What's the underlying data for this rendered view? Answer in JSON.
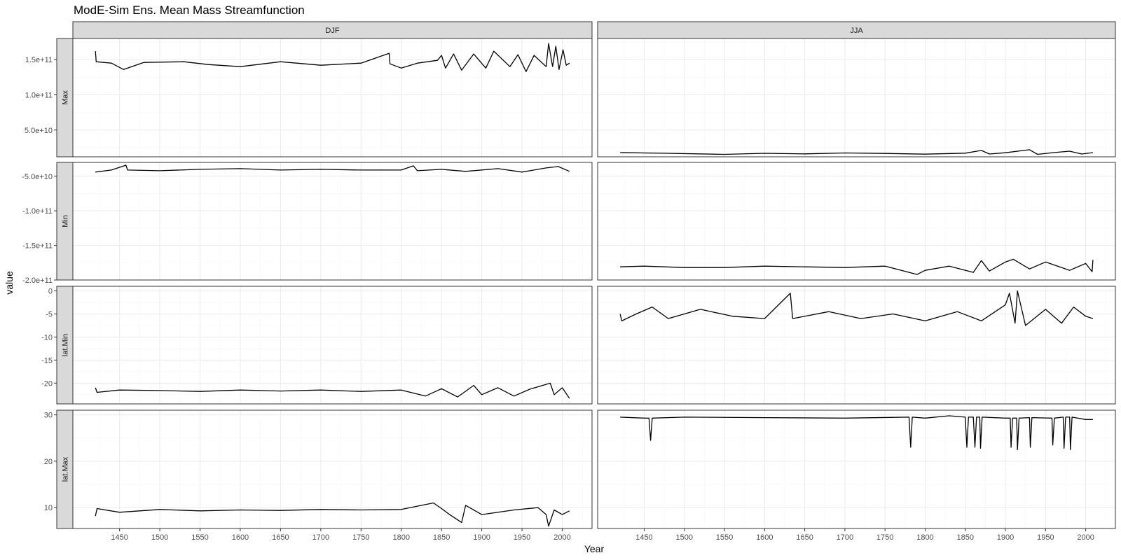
{
  "chart_data": {
    "type": "line",
    "title": "ModE-Sim Ens. Mean Mass Streamfunction",
    "xlabel": "Year",
    "ylabel": "value",
    "x_range": [
      1420,
      2009
    ],
    "xlim": [
      1392,
      2037
    ],
    "x_ticks": [
      1450,
      1500,
      1550,
      1600,
      1650,
      1700,
      1750,
      1800,
      1850,
      1900,
      1950,
      2000
    ],
    "grid": true,
    "legend": "none",
    "line_color": "#000000",
    "facet_columns": [
      "DJF",
      "JJA"
    ],
    "facet_rows": [
      {
        "strip": "Max",
        "ylim": [
          12000000000.0,
          180000000000.0
        ],
        "y_ticks": [
          50000000000.0,
          100000000000.0,
          150000000000.0
        ],
        "y_tick_labels": [
          "5.0e+10",
          "1.0e+11",
          "1.5e+11"
        ],
        "series": [
          {
            "column": "DJF",
            "points": [
              [
                1420,
                162000000000.0
              ],
              [
                1421,
                147000000000.0
              ],
              [
                1440,
                145000000000.0
              ],
              [
                1455,
                136000000000.0
              ],
              [
                1480,
                146000000000.0
              ],
              [
                1530,
                147000000000.0
              ],
              [
                1560,
                143000000000.0
              ],
              [
                1600,
                140000000000.0
              ],
              [
                1650,
                147000000000.0
              ],
              [
                1700,
                142000000000.0
              ],
              [
                1750,
                145000000000.0
              ],
              [
                1785,
                159000000000.0
              ],
              [
                1786,
                144000000000.0
              ],
              [
                1800,
                138000000000.0
              ],
              [
                1820,
                145000000000.0
              ],
              [
                1845,
                149000000000.0
              ],
              [
                1850,
                156000000000.0
              ],
              [
                1855,
                138000000000.0
              ],
              [
                1865,
                158000000000.0
              ],
              [
                1875,
                135000000000.0
              ],
              [
                1890,
                158000000000.0
              ],
              [
                1905,
                138000000000.0
              ],
              [
                1915,
                162000000000.0
              ],
              [
                1935,
                140000000000.0
              ],
              [
                1945,
                157000000000.0
              ],
              [
                1955,
                133000000000.0
              ],
              [
                1965,
                156000000000.0
              ],
              [
                1980,
                140000000000.0
              ],
              [
                1983,
                173000000000.0
              ],
              [
                1988,
                140000000000.0
              ],
              [
                1992,
                169000000000.0
              ],
              [
                1996,
                136000000000.0
              ],
              [
                2001,
                164000000000.0
              ],
              [
                2005,
                142000000000.0
              ],
              [
                2009,
                145000000000.0
              ]
            ]
          },
          {
            "column": "JJA",
            "points": [
              [
                1420,
                18000000000.0
              ],
              [
                1480,
                17000000000.0
              ],
              [
                1550,
                15500000000.0
              ],
              [
                1600,
                17000000000.0
              ],
              [
                1650,
                16200000000.0
              ],
              [
                1700,
                17500000000.0
              ],
              [
                1750,
                16800000000.0
              ],
              [
                1800,
                15800000000.0
              ],
              [
                1850,
                17200000000.0
              ],
              [
                1870,
                21000000000.0
              ],
              [
                1880,
                16000000000.0
              ],
              [
                1900,
                17800000000.0
              ],
              [
                1930,
                22000000000.0
              ],
              [
                1940,
                15500000000.0
              ],
              [
                1960,
                18000000000.0
              ],
              [
                1980,
                20000000000.0
              ],
              [
                1995,
                16000000000.0
              ],
              [
                2009,
                18000000000.0
              ]
            ]
          }
        ]
      },
      {
        "strip": "Min",
        "ylim": [
          -200000000000.0,
          -30000000000.0
        ],
        "y_ticks": [
          -50000000000.0,
          -100000000000.0,
          -150000000000.0,
          -200000000000.0
        ],
        "y_tick_labels": [
          "-5.0e+10",
          "-1.0e+11",
          "-1.5e+11",
          "-2.0e+11"
        ],
        "series": [
          {
            "column": "DJF",
            "points": [
              [
                1420,
                -44000000000.0
              ],
              [
                1440,
                -41000000000.0
              ],
              [
                1458,
                -34000000000.0
              ],
              [
                1460,
                -41000000000.0
              ],
              [
                1500,
                -42000000000.0
              ],
              [
                1550,
                -40000000000.0
              ],
              [
                1600,
                -39000000000.0
              ],
              [
                1650,
                -41000000000.0
              ],
              [
                1700,
                -40000000000.0
              ],
              [
                1750,
                -41000000000.0
              ],
              [
                1800,
                -41000000000.0
              ],
              [
                1815,
                -35000000000.0
              ],
              [
                1820,
                -42000000000.0
              ],
              [
                1850,
                -40000000000.0
              ],
              [
                1880,
                -43000000000.0
              ],
              [
                1920,
                -39000000000.0
              ],
              [
                1950,
                -44000000000.0
              ],
              [
                1980,
                -38000000000.0
              ],
              [
                1995,
                -36000000000.0
              ],
              [
                2009,
                -43000000000.0
              ]
            ]
          },
          {
            "column": "JJA",
            "points": [
              [
                1420,
                -181000000000.0
              ],
              [
                1450,
                -180000000000.0
              ],
              [
                1500,
                -182000000000.0
              ],
              [
                1550,
                -182000000000.0
              ],
              [
                1600,
                -180000000000.0
              ],
              [
                1650,
                -181000000000.0
              ],
              [
                1700,
                -182000000000.0
              ],
              [
                1750,
                -180000000000.0
              ],
              [
                1790,
                -192000000000.0
              ],
              [
                1800,
                -186000000000.0
              ],
              [
                1830,
                -180000000000.0
              ],
              [
                1860,
                -189000000000.0
              ],
              [
                1870,
                -172000000000.0
              ],
              [
                1880,
                -187000000000.0
              ],
              [
                1900,
                -174000000000.0
              ],
              [
                1910,
                -170000000000.0
              ],
              [
                1930,
                -184000000000.0
              ],
              [
                1950,
                -174000000000.0
              ],
              [
                1980,
                -186000000000.0
              ],
              [
                2000,
                -176000000000.0
              ],
              [
                2008,
                -188000000000.0
              ],
              [
                2009,
                -171000000000.0
              ]
            ]
          }
        ]
      },
      {
        "strip": "lat.Min",
        "ylim": [
          -24.5,
          1.0
        ],
        "y_ticks": [
          0,
          -5,
          -10,
          -15,
          -20
        ],
        "y_tick_labels": [
          "0",
          "-5",
          "-10",
          "-15",
          "-20"
        ],
        "series": [
          {
            "column": "DJF",
            "points": [
              [
                1420,
                -21.0
              ],
              [
                1422,
                -22.0
              ],
              [
                1450,
                -21.5
              ],
              [
                1500,
                -21.6
              ],
              [
                1550,
                -21.8
              ],
              [
                1600,
                -21.5
              ],
              [
                1650,
                -21.7
              ],
              [
                1700,
                -21.5
              ],
              [
                1750,
                -21.8
              ],
              [
                1800,
                -21.5
              ],
              [
                1830,
                -22.8
              ],
              [
                1850,
                -21.2
              ],
              [
                1870,
                -23.0
              ],
              [
                1890,
                -20.5
              ],
              [
                1900,
                -22.5
              ],
              [
                1920,
                -21.0
              ],
              [
                1940,
                -22.8
              ],
              [
                1960,
                -21.3
              ],
              [
                1985,
                -20.0
              ],
              [
                1990,
                -22.5
              ],
              [
                2000,
                -21.0
              ],
              [
                2009,
                -23.3
              ]
            ]
          },
          {
            "column": "JJA",
            "points": [
              [
                1420,
                -5.0
              ],
              [
                1422,
                -6.5
              ],
              [
                1440,
                -5.0
              ],
              [
                1460,
                -3.5
              ],
              [
                1480,
                -6.0
              ],
              [
                1520,
                -4.0
              ],
              [
                1560,
                -5.5
              ],
              [
                1600,
                -6.0
              ],
              [
                1632,
                -0.5
              ],
              [
                1635,
                -6.0
              ],
              [
                1680,
                -4.5
              ],
              [
                1720,
                -6.0
              ],
              [
                1760,
                -5.0
              ],
              [
                1800,
                -6.5
              ],
              [
                1840,
                -4.5
              ],
              [
                1870,
                -6.5
              ],
              [
                1900,
                -3.0
              ],
              [
                1905,
                -0.5
              ],
              [
                1912,
                -7.0
              ],
              [
                1915,
                0.0
              ],
              [
                1925,
                -7.5
              ],
              [
                1950,
                -4.0
              ],
              [
                1970,
                -7.0
              ],
              [
                1985,
                -3.5
              ],
              [
                2000,
                -5.5
              ],
              [
                2009,
                -6.0
              ]
            ]
          }
        ]
      },
      {
        "strip": "lat.Max",
        "ylim": [
          5.5,
          31.0
        ],
        "y_ticks": [
          10,
          20,
          30
        ],
        "y_tick_labels": [
          "10",
          "20",
          "30"
        ],
        "series": [
          {
            "column": "DJF",
            "points": [
              [
                1420,
                8.2
              ],
              [
                1422,
                9.8
              ],
              [
                1450,
                9.0
              ],
              [
                1500,
                9.6
              ],
              [
                1550,
                9.3
              ],
              [
                1600,
                9.5
              ],
              [
                1650,
                9.4
              ],
              [
                1700,
                9.6
              ],
              [
                1750,
                9.5
              ],
              [
                1800,
                9.6
              ],
              [
                1840,
                11.0
              ],
              [
                1850,
                9.8
              ],
              [
                1860,
                8.5
              ],
              [
                1875,
                6.8
              ],
              [
                1880,
                10.5
              ],
              [
                1900,
                8.5
              ],
              [
                1940,
                9.5
              ],
              [
                1970,
                10.0
              ],
              [
                1980,
                8.5
              ],
              [
                1983,
                6.0
              ],
              [
                1990,
                9.5
              ],
              [
                2000,
                8.5
              ],
              [
                2009,
                9.3
              ]
            ]
          },
          {
            "column": "JJA",
            "points": [
              [
                1420,
                29.5
              ],
              [
                1450,
                29.3
              ],
              [
                1456,
                29.3
              ],
              [
                1458,
                24.5
              ],
              [
                1460,
                29.3
              ],
              [
                1500,
                29.5
              ],
              [
                1600,
                29.4
              ],
              [
                1700,
                29.3
              ],
              [
                1780,
                29.5
              ],
              [
                1782,
                23.0
              ],
              [
                1784,
                29.5
              ],
              [
                1800,
                29.3
              ],
              [
                1830,
                29.8
              ],
              [
                1850,
                29.5
              ],
              [
                1852,
                23.0
              ],
              [
                1854,
                29.5
              ],
              [
                1860,
                29.5
              ],
              [
                1862,
                23.0
              ],
              [
                1864,
                29.5
              ],
              [
                1868,
                29.5
              ],
              [
                1869,
                22.8
              ],
              [
                1871,
                29.5
              ],
              [
                1900,
                29.3
              ],
              [
                1906,
                29.3
              ],
              [
                1907,
                23.0
              ],
              [
                1909,
                29.3
              ],
              [
                1914,
                29.3
              ],
              [
                1915,
                22.5
              ],
              [
                1917,
                29.3
              ],
              [
                1930,
                29.4
              ],
              [
                1931,
                23.0
              ],
              [
                1933,
                29.4
              ],
              [
                1958,
                29.3
              ],
              [
                1959,
                23.5
              ],
              [
                1961,
                29.3
              ],
              [
                1972,
                29.5
              ],
              [
                1973,
                22.8
              ],
              [
                1975,
                29.5
              ],
              [
                1980,
                29.5
              ],
              [
                1981,
                22.5
              ],
              [
                1983,
                29.5
              ],
              [
                2000,
                29.0
              ],
              [
                2009,
                29.0
              ]
            ]
          }
        ]
      }
    ]
  }
}
